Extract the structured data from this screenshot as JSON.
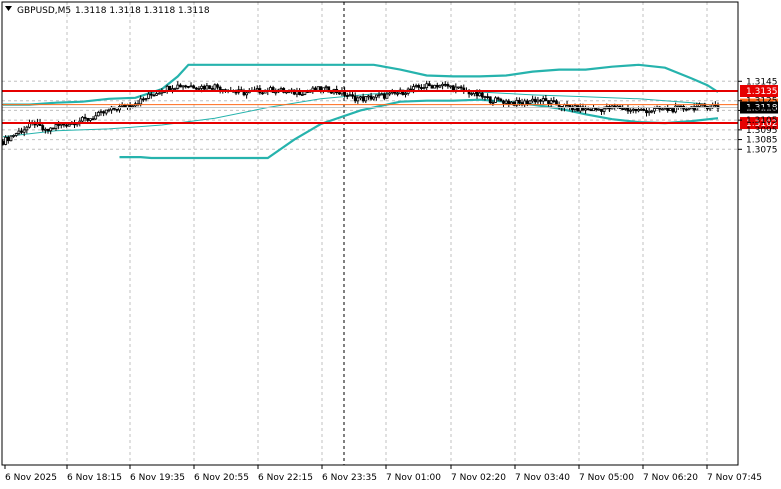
{
  "header": {
    "symbol_label": "GBPUSD,M5",
    "ohlc_label": "1.3118 1.3118 1.3118 1.3118"
  },
  "colors": {
    "background": "#ffffff",
    "grid": "#c0c0c0",
    "candle": "#000000",
    "bollinger": "#26b3ad",
    "middle_band": "#26b3ad",
    "resistance": "#e60000",
    "level_1321": "#ff6a1a",
    "bid_line": "#c8c8c8",
    "price_tag_bg": "#000000"
  },
  "chart_data": {
    "type": "candlestick",
    "symbol": "GBPUSD",
    "timeframe": "M5",
    "ylim": [
      1.3068,
      1.316
    ],
    "y_ticks": [
      "1.3145",
      "1.3125",
      "1.3115",
      "1.3105",
      "1.3095",
      "1.3085",
      "1.3075"
    ],
    "x_ticks": [
      "6 Nov 2025",
      "6 Nov 18:15",
      "6 Nov 19:35",
      "6 Nov 20:55",
      "6 Nov 22:15",
      "6 Nov 23:35",
      "7 Nov 01:00",
      "7 Nov 02:20",
      "7 Nov 03:40",
      "7 Nov 05:00",
      "7 Nov 06:20",
      "7 Nov 07:45"
    ],
    "horizontal_levels": [
      {
        "value": 1.3135,
        "label": "1.3135",
        "color": "#e60000"
      },
      {
        "value": 1.3121,
        "label": "1.3121",
        "color": "#ff6a1a"
      },
      {
        "value": 1.3102,
        "label": "1.3102",
        "color": "#e60000"
      }
    ],
    "current_price": {
      "value": 1.3118,
      "label": "1.3118"
    },
    "session_separator_tick": "6 Nov 23:35",
    "close_path": [
      [
        0,
        1.3083
      ],
      [
        4,
        1.309
      ],
      [
        8,
        1.3096
      ],
      [
        12,
        1.3102
      ],
      [
        16,
        1.3093
      ],
      [
        20,
        1.3099
      ],
      [
        24,
        1.3101
      ],
      [
        28,
        1.3104
      ],
      [
        32,
        1.3106
      ],
      [
        36,
        1.311
      ],
      [
        40,
        1.3115
      ],
      [
        44,
        1.3118
      ],
      [
        48,
        1.3121
      ],
      [
        52,
        1.3125
      ],
      [
        56,
        1.3131
      ],
      [
        60,
        1.3136
      ],
      [
        64,
        1.314
      ],
      [
        68,
        1.3141
      ],
      [
        72,
        1.314
      ],
      [
        76,
        1.3139
      ],
      [
        80,
        1.314
      ],
      [
        84,
        1.3137
      ],
      [
        88,
        1.3134
      ],
      [
        92,
        1.3133
      ],
      [
        96,
        1.3135
      ],
      [
        100,
        1.3136
      ],
      [
        104,
        1.3136
      ],
      [
        108,
        1.3133
      ],
      [
        112,
        1.3134
      ],
      [
        116,
        1.3135
      ],
      [
        120,
        1.3137
      ],
      [
        124,
        1.3136
      ],
      [
        128,
        1.3133
      ],
      [
        132,
        1.3128
      ],
      [
        136,
        1.3127
      ],
      [
        140,
        1.3129
      ],
      [
        144,
        1.313
      ],
      [
        148,
        1.3132
      ],
      [
        152,
        1.3135
      ],
      [
        156,
        1.3138
      ],
      [
        160,
        1.314
      ],
      [
        164,
        1.3141
      ],
      [
        168,
        1.314
      ],
      [
        172,
        1.3137
      ],
      [
        176,
        1.3134
      ],
      [
        180,
        1.313
      ],
      [
        184,
        1.3126
      ],
      [
        188,
        1.3125
      ],
      [
        192,
        1.3123
      ],
      [
        196,
        1.3122
      ],
      [
        200,
        1.3126
      ],
      [
        204,
        1.3125
      ],
      [
        208,
        1.3122
      ],
      [
        212,
        1.3119
      ],
      [
        216,
        1.3117
      ],
      [
        220,
        1.3116
      ],
      [
        224,
        1.3116
      ],
      [
        228,
        1.3117
      ],
      [
        232,
        1.3118
      ],
      [
        236,
        1.3116
      ],
      [
        240,
        1.3115
      ],
      [
        244,
        1.3115
      ],
      [
        248,
        1.3116
      ],
      [
        252,
        1.3116
      ],
      [
        256,
        1.3117
      ],
      [
        260,
        1.3118
      ],
      [
        264,
        1.3119
      ],
      [
        268,
        1.312
      ],
      [
        270,
        1.3118
      ]
    ],
    "upper_band": [
      [
        0,
        1.3121
      ],
      [
        10,
        1.3121
      ],
      [
        20,
        1.3123
      ],
      [
        30,
        1.3124
      ],
      [
        40,
        1.3127
      ],
      [
        50,
        1.3128
      ],
      [
        60,
        1.3137
      ],
      [
        66,
        1.315
      ],
      [
        70,
        1.3162
      ],
      [
        140,
        1.3162
      ],
      [
        150,
        1.3157
      ],
      [
        160,
        1.3151
      ],
      [
        170,
        1.315
      ],
      [
        180,
        1.315
      ],
      [
        190,
        1.3151
      ],
      [
        200,
        1.3155
      ],
      [
        210,
        1.3157
      ],
      [
        220,
        1.3157
      ],
      [
        230,
        1.316
      ],
      [
        240,
        1.3162
      ],
      [
        250,
        1.3159
      ],
      [
        260,
        1.3148
      ],
      [
        266,
        1.3141
      ],
      [
        270,
        1.3134
      ]
    ],
    "middle_band": [
      [
        0,
        1.3088
      ],
      [
        20,
        1.3094
      ],
      [
        40,
        1.3096
      ],
      [
        60,
        1.31
      ],
      [
        80,
        1.3107
      ],
      [
        100,
        1.3118
      ],
      [
        120,
        1.3127
      ],
      [
        140,
        1.3132
      ],
      [
        160,
        1.3135
      ],
      [
        170,
        1.3135
      ],
      [
        180,
        1.3134
      ],
      [
        200,
        1.3131
      ],
      [
        220,
        1.3129
      ],
      [
        240,
        1.3127
      ],
      [
        260,
        1.3123
      ],
      [
        270,
        1.312
      ]
    ],
    "lower_band": [
      [
        44,
        1.3067
      ],
      [
        52,
        1.3067
      ],
      [
        56,
        1.3066
      ],
      [
        100,
        1.3066
      ],
      [
        110,
        1.3085
      ],
      [
        120,
        1.3101
      ],
      [
        135,
        1.3115
      ],
      [
        150,
        1.3124
      ],
      [
        160,
        1.3125
      ],
      [
        170,
        1.3125
      ],
      [
        180,
        1.3126
      ],
      [
        190,
        1.3124
      ],
      [
        200,
        1.3121
      ],
      [
        210,
        1.3117
      ],
      [
        220,
        1.3111
      ],
      [
        230,
        1.3106
      ],
      [
        240,
        1.3103
      ],
      [
        250,
        1.3102
      ],
      [
        260,
        1.3104
      ],
      [
        270,
        1.3107
      ]
    ]
  }
}
